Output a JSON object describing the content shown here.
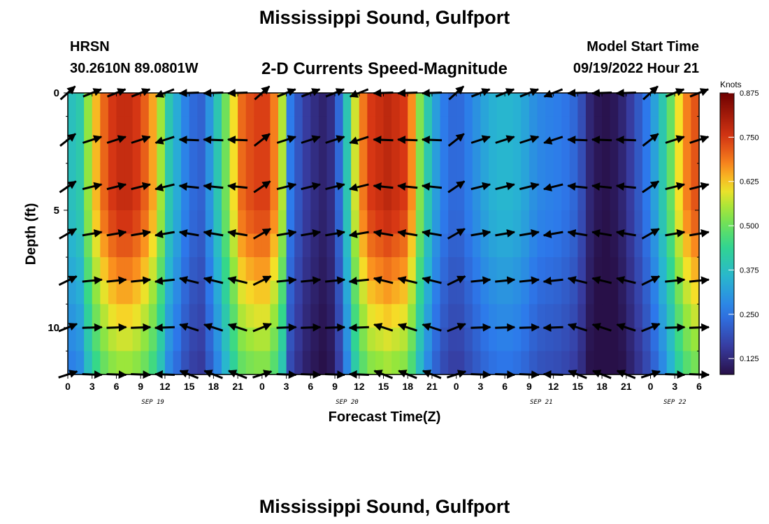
{
  "title": "Mississippi Sound, Gulfport",
  "title_repeat": "Mississippi Sound, Gulfport",
  "station": {
    "name": "HRSN",
    "coords": "30.2610N  89.0801W"
  },
  "subtitle": "2-D Currents Speed-Magnitude",
  "model_start": {
    "label": "Model Start Time",
    "value": "09/19/2022 Hour 21"
  },
  "chart_data": {
    "type": "heatmap",
    "title": "2-D Currents Speed-Magnitude",
    "xlabel": "Forecast Time(Z)",
    "ylabel": "Depth (ft)",
    "x_hours": [
      0,
      78
    ],
    "x_tick_labels": [
      "0",
      "3",
      "6",
      "9",
      "12",
      "15",
      "18",
      "21",
      "0",
      "3",
      "6",
      "9",
      "12",
      "15",
      "18",
      "21",
      "0",
      "3",
      "6",
      "9",
      "12",
      "15",
      "18",
      "21",
      "0",
      "3",
      "6"
    ],
    "date_labels": [
      {
        "hour": 10.5,
        "text": "SEP 19"
      },
      {
        "hour": 34.5,
        "text": "SEP 20"
      },
      {
        "hour": 58.5,
        "text": "SEP 21"
      },
      {
        "hour": 75,
        "text": "SEP 22"
      }
    ],
    "y_ticks": [
      0,
      5,
      10
    ],
    "ylim": [
      0,
      12
    ],
    "colorbar": {
      "label": "Knots",
      "range": [
        0.08,
        0.875
      ],
      "ticks": [
        "0.875",
        "0.750",
        "0.625",
        "0.500",
        "0.375",
        "0.250",
        "0.125"
      ],
      "tick_values": [
        0.875,
        0.75,
        0.625,
        0.5,
        0.375,
        0.25,
        0.125
      ]
    }
  }
}
